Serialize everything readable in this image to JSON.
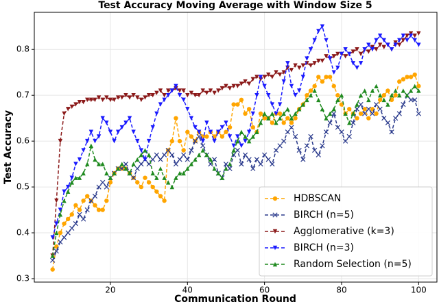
{
  "chart_data": {
    "type": "line",
    "title": "Test Accuracy Moving Average with Window Size 5",
    "xlabel": "Communication Round",
    "ylabel": "Test Accuracy",
    "x": [
      5,
      6,
      7,
      8,
      9,
      10,
      11,
      12,
      13,
      14,
      15,
      16,
      17,
      18,
      19,
      20,
      21,
      22,
      23,
      24,
      25,
      26,
      27,
      28,
      29,
      30,
      31,
      32,
      33,
      34,
      35,
      36,
      37,
      38,
      39,
      40,
      41,
      42,
      43,
      44,
      45,
      46,
      47,
      48,
      49,
      50,
      51,
      52,
      53,
      54,
      55,
      56,
      57,
      58,
      59,
      60,
      61,
      62,
      63,
      64,
      65,
      66,
      67,
      68,
      69,
      70,
      71,
      72,
      73,
      74,
      75,
      76,
      77,
      78,
      79,
      80,
      81,
      82,
      83,
      84,
      85,
      86,
      87,
      88,
      89,
      90,
      91,
      92,
      93,
      94,
      95,
      96,
      97,
      98,
      99,
      100
    ],
    "series": [
      {
        "name": "HDBSCAN",
        "color": "#ffa500",
        "marker": "circle",
        "values": [
          0.32,
          0.37,
          0.4,
          0.42,
          0.43,
          0.44,
          0.46,
          0.45,
          0.47,
          0.48,
          0.47,
          0.46,
          0.45,
          0.45,
          0.47,
          0.51,
          0.53,
          0.54,
          0.54,
          0.54,
          0.53,
          0.52,
          0.51,
          0.5,
          0.52,
          0.51,
          0.5,
          0.49,
          0.48,
          0.47,
          0.58,
          0.6,
          0.65,
          0.6,
          0.58,
          0.62,
          0.61,
          0.6,
          0.62,
          0.61,
          0.61,
          0.62,
          0.61,
          0.62,
          0.61,
          0.62,
          0.63,
          0.68,
          0.68,
          0.69,
          0.66,
          0.67,
          0.63,
          0.62,
          0.66,
          0.65,
          0.65,
          0.64,
          0.66,
          0.66,
          0.64,
          0.65,
          0.64,
          0.65,
          0.67,
          0.68,
          0.7,
          0.71,
          0.72,
          0.74,
          0.73,
          0.74,
          0.74,
          0.72,
          0.7,
          0.68,
          0.66,
          0.67,
          0.66,
          0.65,
          0.66,
          0.67,
          0.65,
          0.67,
          0.66,
          0.69,
          0.7,
          0.71,
          0.69,
          0.7,
          0.73,
          0.735,
          0.74,
          0.74,
          0.745,
          0.72
        ]
      },
      {
        "name": "BIRCH (n=5)",
        "color": "#2a3a8c",
        "marker": "x",
        "values": [
          0.34,
          0.36,
          0.38,
          0.39,
          0.4,
          0.41,
          0.42,
          0.44,
          0.43,
          0.45,
          0.47,
          0.48,
          0.5,
          0.51,
          0.5,
          0.52,
          0.53,
          0.54,
          0.54,
          0.55,
          0.53,
          0.52,
          0.54,
          0.55,
          0.56,
          0.55,
          0.56,
          0.57,
          0.56,
          0.57,
          0.58,
          0.57,
          0.55,
          0.56,
          0.57,
          0.56,
          0.58,
          0.6,
          0.61,
          0.59,
          0.57,
          0.55,
          0.56,
          0.53,
          0.52,
          0.55,
          0.54,
          0.57,
          0.58,
          0.55,
          0.57,
          0.56,
          0.54,
          0.56,
          0.55,
          0.57,
          0.56,
          0.55,
          0.58,
          0.59,
          0.6,
          0.62,
          0.63,
          0.61,
          0.58,
          0.56,
          0.59,
          0.61,
          0.58,
          0.57,
          0.59,
          0.62,
          0.64,
          0.66,
          0.63,
          0.62,
          0.6,
          0.61,
          0.64,
          0.67,
          0.68,
          0.66,
          0.67,
          0.66,
          0.68,
          0.67,
          0.65,
          0.64,
          0.62,
          0.65,
          0.66,
          0.68,
          0.7,
          0.69,
          0.69,
          0.66
        ]
      },
      {
        "name": "Agglomerative (k=3)",
        "color": "#8b1a1a",
        "marker": "triangle-down",
        "values": [
          0.35,
          0.47,
          0.6,
          0.66,
          0.67,
          0.675,
          0.68,
          0.685,
          0.685,
          0.69,
          0.69,
          0.69,
          0.695,
          0.69,
          0.695,
          0.69,
          0.69,
          0.695,
          0.695,
          0.7,
          0.695,
          0.7,
          0.695,
          0.69,
          0.695,
          0.7,
          0.7,
          0.705,
          0.71,
          0.7,
          0.71,
          0.71,
          0.715,
          0.71,
          0.71,
          0.7,
          0.705,
          0.7,
          0.7,
          0.71,
          0.705,
          0.71,
          0.705,
          0.71,
          0.715,
          0.72,
          0.715,
          0.72,
          0.72,
          0.725,
          0.73,
          0.725,
          0.735,
          0.74,
          0.735,
          0.74,
          0.745,
          0.74,
          0.75,
          0.745,
          0.75,
          0.76,
          0.755,
          0.765,
          0.76,
          0.765,
          0.77,
          0.765,
          0.77,
          0.775,
          0.775,
          0.785,
          0.78,
          0.785,
          0.79,
          0.79,
          0.785,
          0.79,
          0.795,
          0.8,
          0.79,
          0.8,
          0.795,
          0.805,
          0.8,
          0.81,
          0.805,
          0.81,
          0.8,
          0.815,
          0.81,
          0.82,
          0.83,
          0.835,
          0.83,
          0.835
        ]
      },
      {
        "name": "BIRCH (n=3)",
        "color": "#1a1aff",
        "marker": "triangle-down",
        "values": [
          0.39,
          0.42,
          0.45,
          0.49,
          0.5,
          0.52,
          0.55,
          0.56,
          0.58,
          0.6,
          0.62,
          0.6,
          0.61,
          0.65,
          0.64,
          0.62,
          0.6,
          0.62,
          0.63,
          0.64,
          0.65,
          0.62,
          0.6,
          0.58,
          0.56,
          0.6,
          0.63,
          0.66,
          0.68,
          0.69,
          0.7,
          0.71,
          0.72,
          0.7,
          0.69,
          0.67,
          0.65,
          0.63,
          0.62,
          0.6,
          0.64,
          0.62,
          0.6,
          0.62,
          0.63,
          0.64,
          0.61,
          0.59,
          0.61,
          0.59,
          0.6,
          0.62,
          0.66,
          0.7,
          0.74,
          0.72,
          0.7,
          0.68,
          0.66,
          0.68,
          0.73,
          0.77,
          0.72,
          0.7,
          0.71,
          0.74,
          0.78,
          0.8,
          0.82,
          0.84,
          0.85,
          0.82,
          0.78,
          0.75,
          0.76,
          0.79,
          0.8,
          0.79,
          0.77,
          0.76,
          0.77,
          0.8,
          0.81,
          0.8,
          0.82,
          0.83,
          0.82,
          0.81,
          0.8,
          0.81,
          0.82,
          0.83,
          0.82,
          0.83,
          0.82,
          0.81
        ]
      },
      {
        "name": "Random Selection (n=5)",
        "color": "#1f8a1f",
        "marker": "triangle-up",
        "values": [
          0.35,
          0.4,
          0.44,
          0.47,
          0.49,
          0.51,
          0.52,
          0.52,
          0.53,
          0.55,
          0.59,
          0.56,
          0.55,
          0.55,
          0.53,
          0.52,
          0.53,
          0.54,
          0.55,
          0.54,
          0.53,
          0.55,
          0.56,
          0.57,
          0.58,
          0.57,
          0.53,
          0.52,
          0.54,
          0.52,
          0.51,
          0.5,
          0.52,
          0.53,
          0.53,
          0.54,
          0.55,
          0.56,
          0.57,
          0.58,
          0.57,
          0.56,
          0.54,
          0.53,
          0.52,
          0.54,
          0.55,
          0.58,
          0.6,
          0.62,
          0.61,
          0.6,
          0.61,
          0.62,
          0.64,
          0.66,
          0.65,
          0.66,
          0.64,
          0.65,
          0.66,
          0.67,
          0.65,
          0.66,
          0.67,
          0.68,
          0.69,
          0.7,
          0.71,
          0.69,
          0.67,
          0.65,
          0.66,
          0.67,
          0.69,
          0.7,
          0.66,
          0.64,
          0.66,
          0.68,
          0.7,
          0.71,
          0.69,
          0.71,
          0.72,
          0.7,
          0.69,
          0.68,
          0.7,
          0.71,
          0.7,
          0.71,
          0.7,
          0.71,
          0.72,
          0.71
        ]
      }
    ],
    "xlim": [
      0.25,
      104.75
    ],
    "xticks": [
      20,
      40,
      60,
      80,
      100
    ],
    "ylim": [
      0.2925,
      0.881
    ],
    "yticks": [
      0.3,
      0.4,
      0.5,
      0.6,
      0.7,
      0.8
    ],
    "grid": true,
    "linestyle": "dashed",
    "legend": "lower right"
  }
}
